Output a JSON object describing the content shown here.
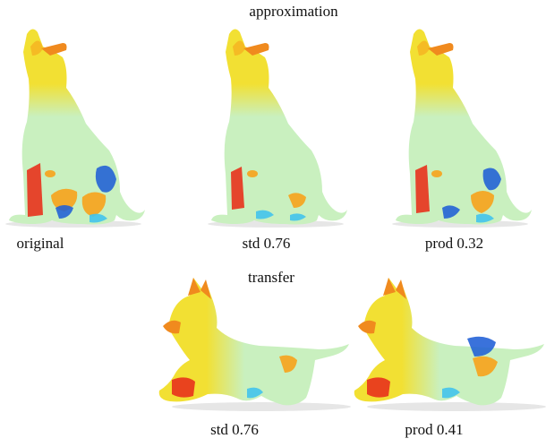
{
  "figure": {
    "top_heading": "approximation",
    "bottom_heading": "transfer",
    "top_row": [
      {
        "caption": "original",
        "pattern": "original"
      },
      {
        "caption": "std 0.76",
        "pattern": "std"
      },
      {
        "caption": "prod 0.32",
        "pattern": "prod"
      }
    ],
    "bottom_row": [
      {
        "caption": "std 0.76",
        "pattern": "std"
      },
      {
        "caption": "prod 0.41",
        "pattern": "prod"
      }
    ]
  },
  "colors": {
    "body": "#c9f0bf",
    "head": "#f2e033",
    "snout": "#f08a1e",
    "red": "#e8321c",
    "orange": "#f7a21b",
    "yellow": "#f2e74a",
    "blue": "#1f5fd6",
    "cyan": "#43c3ec"
  }
}
